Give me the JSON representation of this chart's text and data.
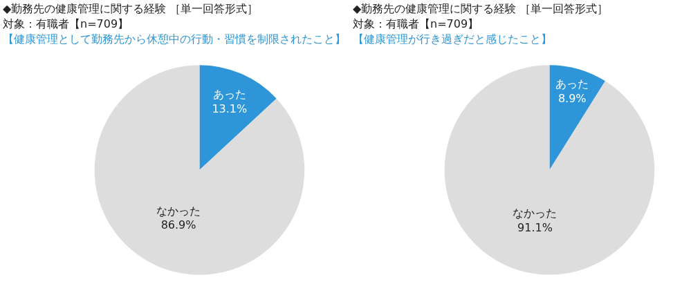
{
  "chart_data": [
    {
      "type": "pie",
      "title": "◆勤務先の健康管理に関する経験 ［単一回答形式］",
      "subtitle": "対象：有職者【n=709】",
      "annotations": [
        "【健康管理として勤務先から休憩中の行動・習慣を制限されたこと】"
      ],
      "categories": [
        "あった",
        "なかった"
      ],
      "values": [
        13.1,
        86.9
      ],
      "value_labels": [
        "13.1%",
        "86.9%"
      ],
      "colors": [
        "#2e96d8",
        "#dddddd"
      ],
      "legend": false
    },
    {
      "type": "pie",
      "title": "◆勤務先の健康管理に関する経験 ［単一回答形式］",
      "subtitle": "対象：有職者【n=709】",
      "annotations": [
        "【健康管理が行き過ぎだと感じたこと】"
      ],
      "categories": [
        "あった",
        "なかった"
      ],
      "values": [
        8.9,
        91.1
      ],
      "value_labels": [
        "8.9%",
        "91.1%"
      ],
      "colors": [
        "#2e96d8",
        "#dddddd"
      ],
      "legend": false
    }
  ]
}
